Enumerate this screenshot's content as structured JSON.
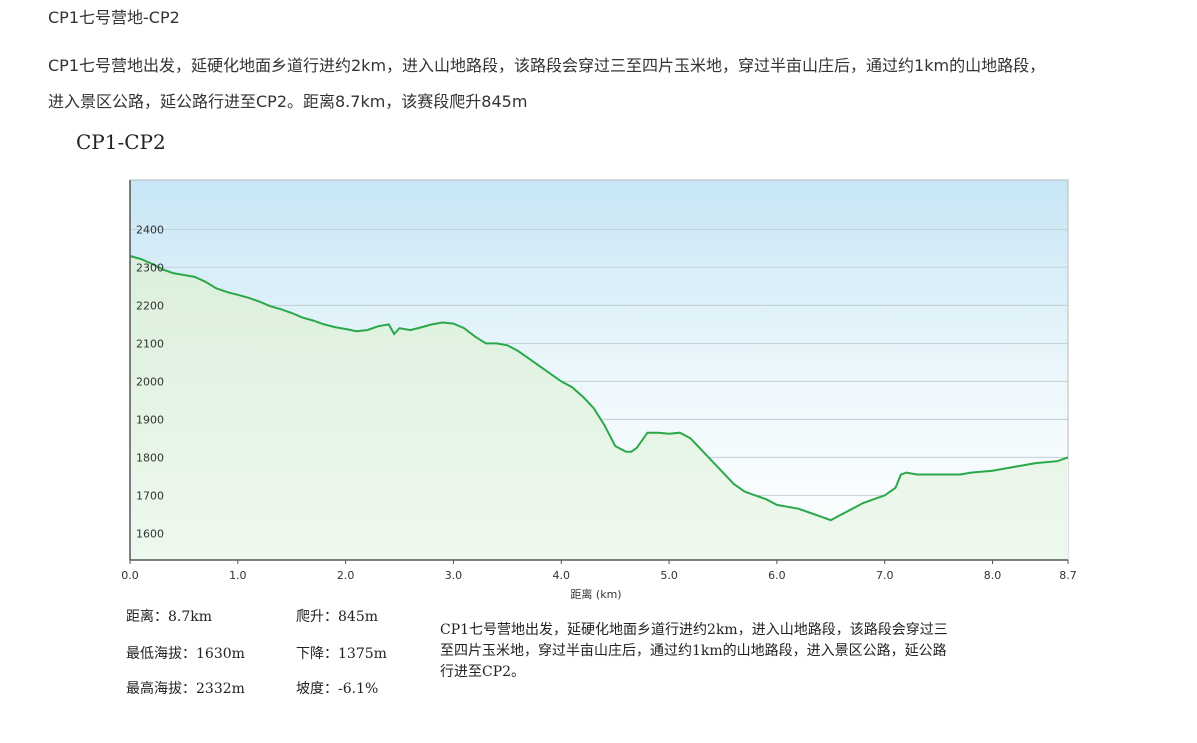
{
  "page": {
    "title": "CP1七号营地-CP2",
    "description_line1": "CP1七号营地出发，延硬化地面乡道行进约2km，进入山地路段，该路段会穿过三至四片玉米地，穿过半亩山庄后，通过约1km的山地路段，",
    "description_line2": "进入景区公路，延公路行进至CP2。距离8.7km，该赛段爬升845m"
  },
  "figure": {
    "heading": "CP1-CP2",
    "stats": {
      "distance": "距离：8.7km",
      "min_elev": "最低海拔：1630m",
      "max_elev": "最高海拔：2332m",
      "climb": "爬升：845m",
      "descent": "下降：1375m",
      "grade": "坡度：-6.1%"
    },
    "caption_line1": "CP1七号营地出发，延硬化地面乡道行进约2km，进入山地路段，该路段会穿过三",
    "caption_line2": "至四片玉米地，穿过半亩山庄后，通过约1km的山地路段，进入景区公路，延公路",
    "caption_line3": "行进至CP2。"
  },
  "chart_data": {
    "type": "area",
    "xlabel": "距离 (km)",
    "ylabel": "",
    "xlim": [
      0,
      8.7
    ],
    "ylim": [
      1530,
      2530
    ],
    "x_ticks": [
      0.0,
      1.0,
      2.0,
      3.0,
      4.0,
      5.0,
      6.0,
      7.0,
      8.0,
      8.7
    ],
    "x_tick_labels": [
      "0.0",
      "1.0",
      "2.0",
      "3.0",
      "4.0",
      "5.0",
      "6.0",
      "7.0",
      "8.0",
      "8.7"
    ],
    "y_ticks": [
      1600,
      1700,
      1800,
      1900,
      2000,
      2100,
      2200,
      2300,
      2400
    ],
    "grid": true,
    "line_color": "#2aa84a",
    "series": [
      {
        "x": [
          0,
          0.1,
          0.2,
          0.3,
          0.4,
          0.5,
          0.6,
          0.7,
          0.8,
          0.9,
          1.0,
          1.1,
          1.2,
          1.3,
          1.4,
          1.5,
          1.6,
          1.7,
          1.8,
          1.9,
          2.0,
          2.1,
          2.2,
          2.3,
          2.4,
          2.45,
          2.5,
          2.6,
          2.7,
          2.8,
          2.9,
          3.0,
          3.1,
          3.2,
          3.3,
          3.4,
          3.5,
          3.6,
          3.7,
          3.8,
          3.9,
          4.0,
          4.1,
          4.2,
          4.3,
          4.4,
          4.5,
          4.6,
          4.65,
          4.7,
          4.8,
          4.9,
          5.0,
          5.1,
          5.2,
          5.3,
          5.4,
          5.5,
          5.6,
          5.7,
          5.8,
          5.9,
          6.0,
          6.1,
          6.2,
          6.3,
          6.4,
          6.5,
          6.6,
          6.7,
          6.8,
          6.9,
          7.0,
          7.1,
          7.15,
          7.2,
          7.3,
          7.5,
          7.7,
          7.8,
          8.0,
          8.2,
          8.4,
          8.6,
          8.7
        ],
        "values": [
          2330,
          2322,
          2310,
          2295,
          2285,
          2280,
          2275,
          2262,
          2245,
          2235,
          2228,
          2220,
          2210,
          2198,
          2190,
          2180,
          2168,
          2160,
          2150,
          2143,
          2138,
          2132,
          2135,
          2145,
          2150,
          2125,
          2140,
          2135,
          2142,
          2150,
          2155,
          2152,
          2140,
          2118,
          2100,
          2100,
          2095,
          2080,
          2060,
          2040,
          2020,
          2000,
          1985,
          1960,
          1930,
          1885,
          1830,
          1815,
          1815,
          1825,
          1865,
          1865,
          1862,
          1865,
          1850,
          1820,
          1790,
          1760,
          1730,
          1710,
          1700,
          1690,
          1675,
          1670,
          1665,
          1655,
          1645,
          1635,
          1650,
          1665,
          1680,
          1690,
          1700,
          1720,
          1755,
          1760,
          1755,
          1755,
          1755,
          1760,
          1765,
          1775,
          1785,
          1790,
          1800
        ]
      }
    ]
  }
}
